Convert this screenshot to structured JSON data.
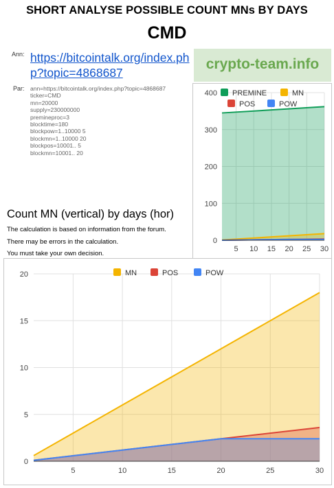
{
  "header": {
    "title": "SHORT ANALYSE POSSIBLE COUNT MNs BY DAYS",
    "coin": "CMD"
  },
  "ann": {
    "label": "Ann:",
    "link": "https://bitcointalk.org/index.php?topic=4868687"
  },
  "par": {
    "label": "Par:",
    "lines": [
      "ann=https://bitcointalk.org/index.php?topic=4868687",
      "ticker=CMD",
      "mn=20000",
      "supply=230000000",
      "premineproc=3",
      "blocktime=180",
      "blockpow=1..10000 5",
      "blockmn=1..10000 20",
      "blockpos=10001.. 5",
      "blockmn=10001.. 20"
    ]
  },
  "brand": "crypto-team.info",
  "subtitle": "Count MN (vertical) by days (hor)",
  "notes": [
    "The calculation is based on information from the forum.",
    "There may be errors in the calculation.",
    "You must take your own decision."
  ],
  "colors": {
    "premine": "#0f9d58",
    "mn": "#f4b400",
    "pos": "#db4437",
    "pow": "#4285f4"
  },
  "chart_data": [
    {
      "type": "area",
      "series": [
        {
          "name": "PREMINE",
          "color": "#0f9d58",
          "x": [
            1,
            30
          ],
          "values": [
            345,
            362
          ]
        },
        {
          "name": "MN",
          "color": "#f4b400",
          "x": [
            1,
            30
          ],
          "values": [
            0.6,
            18
          ]
        },
        {
          "name": "POS",
          "color": "#db4437",
          "x": [
            1,
            20,
            30
          ],
          "values": [
            0.1,
            2.4,
            3.6
          ]
        },
        {
          "name": "POW",
          "color": "#4285f4",
          "x": [
            1,
            20,
            30
          ],
          "values": [
            0.1,
            2.4,
            2.4
          ]
        }
      ],
      "xticks": [
        5,
        10,
        15,
        20,
        25,
        30
      ],
      "yticks": [
        0,
        100,
        200,
        300,
        400
      ],
      "xlim": [
        1,
        30
      ],
      "ylim": [
        0,
        400
      ],
      "legend": "top",
      "grid": true
    },
    {
      "type": "area",
      "series": [
        {
          "name": "MN",
          "color": "#f4b400",
          "x": [
            1,
            30
          ],
          "values": [
            0.6,
            18
          ]
        },
        {
          "name": "POS",
          "color": "#db4437",
          "x": [
            1,
            20,
            30
          ],
          "values": [
            0.1,
            2.4,
            3.6
          ]
        },
        {
          "name": "POW",
          "color": "#4285f4",
          "x": [
            1,
            20,
            30
          ],
          "values": [
            0.1,
            2.4,
            2.4
          ]
        }
      ],
      "xticks": [
        5,
        10,
        15,
        20,
        25,
        30
      ],
      "yticks": [
        0,
        5,
        10,
        15,
        20
      ],
      "xlim": [
        1,
        30
      ],
      "ylim": [
        0,
        20
      ],
      "legend": "top",
      "grid": true
    }
  ]
}
